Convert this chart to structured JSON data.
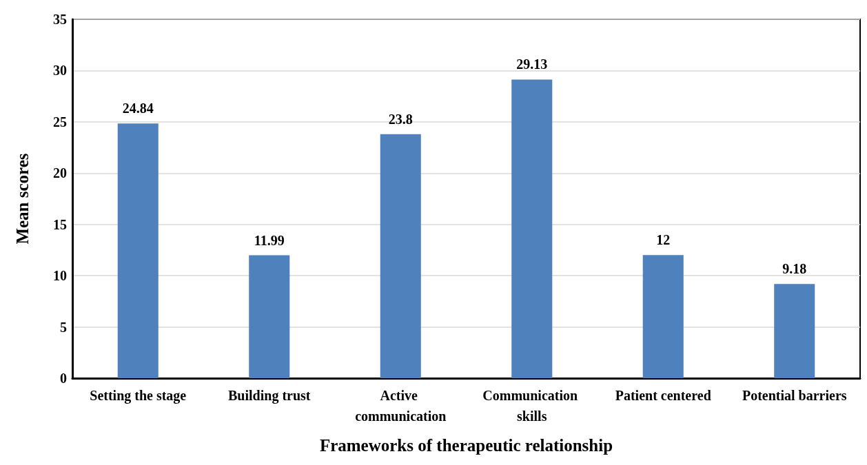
{
  "chart_data": {
    "type": "bar",
    "xlabel": "Frameworks of therapeutic relationship",
    "ylabel": "Mean scores",
    "categories": [
      "Setting the stage",
      "Building trust",
      "Active communication",
      "Communication skills",
      "Patient centered",
      "Potential barriers"
    ],
    "values": [
      24.84,
      11.99,
      23.8,
      29.13,
      12,
      9.18
    ],
    "color": "#4f81bd",
    "ylim": [
      0,
      35
    ],
    "yticks": [
      0,
      5,
      10,
      15,
      20,
      25,
      30,
      35
    ],
    "grid": "y",
    "data_labels": true
  }
}
